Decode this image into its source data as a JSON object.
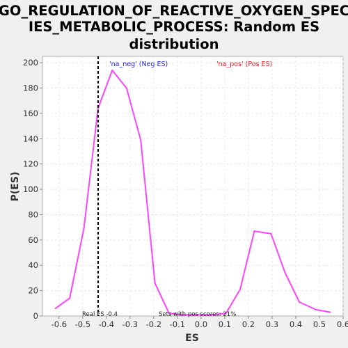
{
  "chart_data": {
    "type": "line",
    "title_lines": [
      "GO_REGULATION_OF_REACTIVE_OXYGEN_SPEC",
      "IES_METABOLIC_PROCESS: Random ES",
      "distribution"
    ],
    "xlabel": "ES",
    "ylabel": "P(ES)",
    "xlim": [
      -0.67,
      0.6
    ],
    "ylim": [
      0,
      205
    ],
    "x_ticks": [
      -0.6,
      -0.5,
      -0.4,
      -0.3,
      -0.2,
      -0.1,
      0.0,
      0.1,
      0.2,
      0.3,
      0.4,
      0.5,
      0.6
    ],
    "x_tick_labels": [
      "-0.6",
      "-0.5",
      "-0.4",
      "-0.3",
      "-0.2",
      "-0.1",
      "0.0",
      "0.1",
      "0.2",
      "0.3",
      "0.4",
      "0.5",
      "0.6"
    ],
    "y_ticks": [
      0,
      20,
      40,
      60,
      80,
      100,
      120,
      140,
      160,
      180,
      200
    ],
    "y_tick_labels": [
      "0",
      "20",
      "40",
      "60",
      "80",
      "100",
      "120",
      "140",
      "160",
      "180",
      "200"
    ],
    "grid": true,
    "series": [
      {
        "name": "distribution",
        "color": "#ff44ff",
        "x": [
          -0.615,
          -0.555,
          -0.495,
          -0.435,
          -0.375,
          -0.315,
          -0.255,
          -0.195,
          -0.135,
          -0.075,
          -0.015,
          0.045,
          0.105,
          0.165,
          0.225,
          0.295,
          0.355,
          0.415,
          0.485,
          0.545
        ],
        "y": [
          6,
          14,
          69,
          164,
          194,
          180,
          139,
          26,
          2,
          1,
          1,
          1,
          2,
          21,
          67,
          65,
          34,
          11,
          5,
          3
        ]
      }
    ],
    "real_es": {
      "x": -0.435,
      "color": "#000000",
      "label": "Real ES -0.4"
    },
    "legend": [
      {
        "text": "'na_neg' (Neg ES)",
        "color": "#2222dd"
      },
      {
        "text": "'na_pos' (Pos ES)",
        "color": "#dd2222"
      }
    ],
    "annotations": {
      "pos_scores": "Sets with pos scores: 21%"
    }
  }
}
